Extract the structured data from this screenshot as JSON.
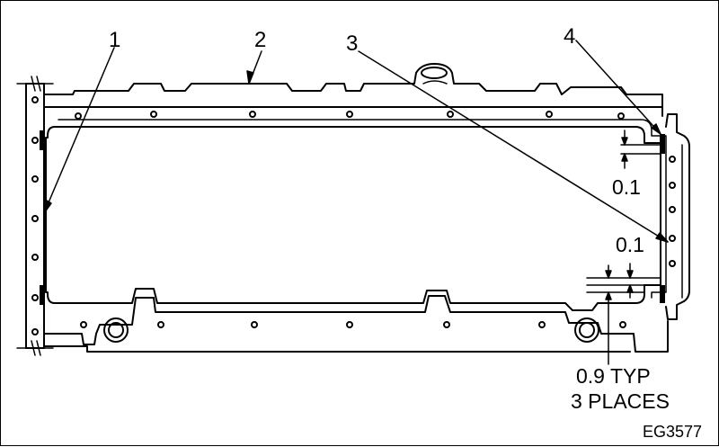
{
  "callouts": [
    "1",
    "2",
    "3",
    "4"
  ],
  "dimensions": {
    "upper_gap": "0.1",
    "lower_gap": "0.1",
    "offset_line1": "0.9 TYP",
    "offset_line2": "3 PLACES"
  },
  "figure_code": "EG3577",
  "colors": {
    "line": "#000000",
    "fill": "#ffffff",
    "sealant": "#000000"
  }
}
